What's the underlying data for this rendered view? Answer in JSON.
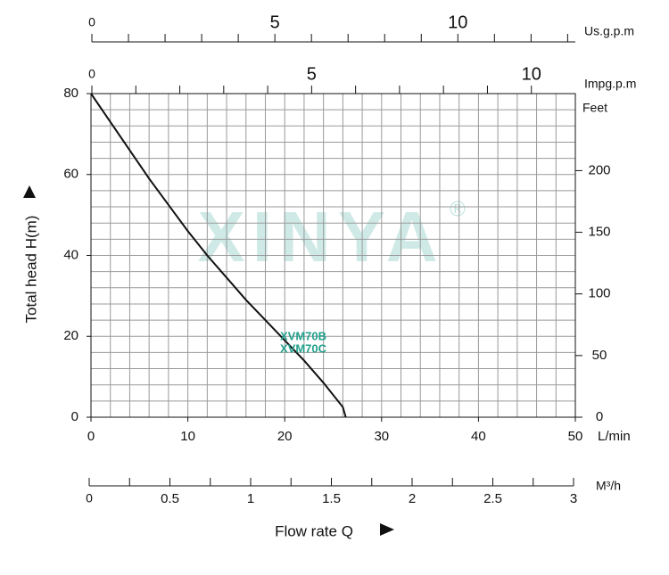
{
  "chart_data": {
    "type": "line",
    "x": [
      0,
      2,
      4,
      6,
      8,
      10,
      12,
      14,
      16,
      18,
      20,
      22,
      24,
      26,
      26.3
    ],
    "values": [
      80,
      73,
      66,
      59,
      52.5,
      46,
      40,
      34.5,
      29,
      24,
      19,
      14,
      8.5,
      2.5,
      0
    ],
    "color": "#111111",
    "curve_labels": [
      "XVM70B",
      "XVM70C"
    ],
    "curve_label_color": "#22a08c",
    "watermark": "XINYA",
    "watermark_mark": "®",
    "xlim": [
      0,
      50
    ],
    "xticks": [
      0,
      10,
      20,
      30,
      40,
      50
    ],
    "xlabel": "L/min",
    "ylim": [
      0,
      80
    ],
    "yticks": [
      0,
      20,
      40,
      60,
      80
    ],
    "ylabel": "Total head H(m)",
    "xgrid": [
      0,
      2,
      4,
      6,
      8,
      10,
      12,
      14,
      16,
      18,
      20,
      22,
      24,
      26,
      28,
      30,
      32,
      34,
      36,
      38,
      40,
      42,
      44,
      46,
      48,
      50
    ],
    "ygrid": [
      0,
      4,
      8,
      12,
      16,
      20,
      24,
      28,
      32,
      36,
      40,
      44,
      48,
      52,
      56,
      60,
      64,
      68,
      72,
      76,
      80
    ],
    "y2lim": [
      0,
      262.47
    ],
    "y2ticks": [
      0,
      50,
      100,
      150,
      200
    ],
    "y2label": "Feet",
    "usgpm_axis": {
      "label": "Us.g.p.m",
      "lim": [
        0,
        13.21
      ],
      "ticks": [
        0,
        5,
        10
      ],
      "minor_ticks": [
        1,
        2,
        3,
        4,
        6,
        7,
        8,
        9,
        11,
        12,
        13
      ]
    },
    "impgpm_axis": {
      "label": "Impg.p.m",
      "lim": [
        0,
        11
      ],
      "ticks": [
        0,
        5,
        10
      ],
      "minor_ticks": [
        1,
        2,
        3,
        4,
        6,
        7,
        8,
        9
      ]
    },
    "m3h_axis": {
      "label": "M³/h",
      "lim": [
        0,
        3
      ],
      "ticks": [
        0,
        0.5,
        1,
        1.5,
        2,
        2.5,
        3
      ],
      "minor_ticks": [
        0.25,
        0.75,
        1.25,
        1.75,
        2.25,
        2.75
      ]
    },
    "flow_label": "Flow rate Q"
  }
}
